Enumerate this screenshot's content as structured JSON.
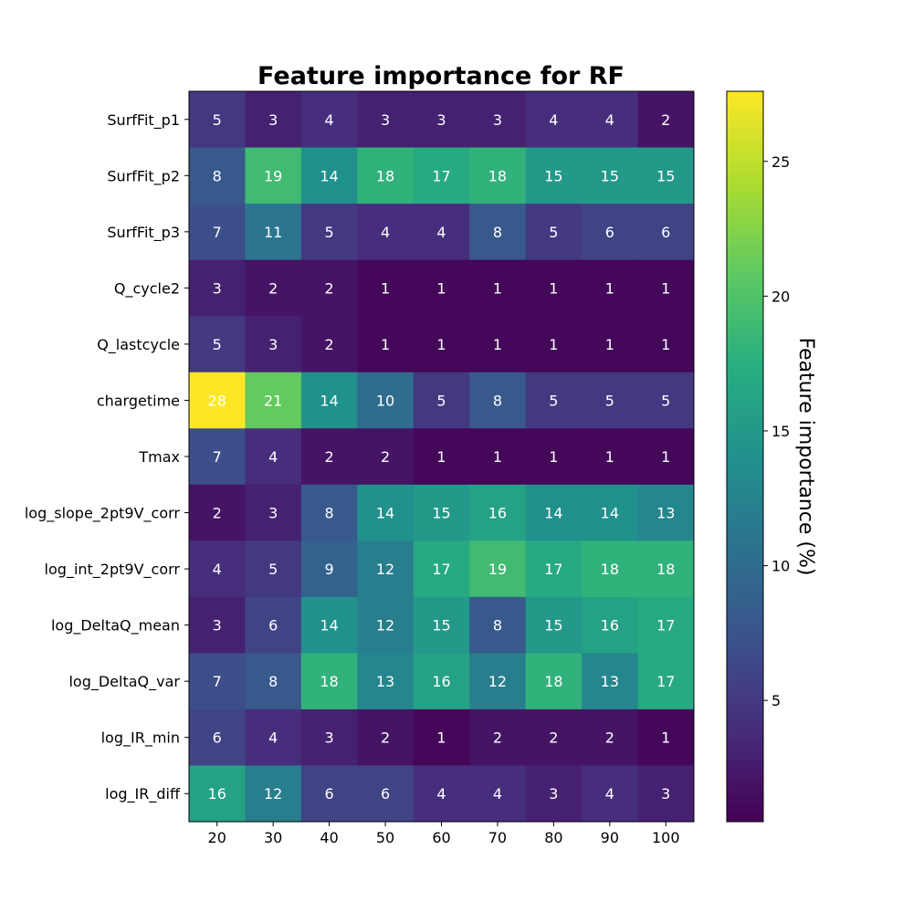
{
  "chart_data": {
    "type": "heatmap",
    "title": "Feature importance for RF",
    "x": [
      "20",
      "30",
      "40",
      "50",
      "60",
      "70",
      "80",
      "90",
      "100"
    ],
    "y": [
      "SurfFit_p1",
      "SurfFit_p2",
      "SurfFit_p3",
      "Q_cycle2",
      "Q_lastcycle",
      "chargetime",
      "Tmax",
      "log_slope_2pt9V_corr",
      "log_int_2pt9V_corr",
      "log_DeltaQ_mean",
      "log_DeltaQ_var",
      "log_IR_min",
      "log_IR_diff"
    ],
    "values": [
      [
        5,
        3,
        4,
        3,
        3,
        3,
        4,
        4,
        2
      ],
      [
        8,
        19,
        14,
        18,
        17,
        18,
        15,
        15,
        15
      ],
      [
        7,
        11,
        5,
        4,
        4,
        8,
        5,
        6,
        6
      ],
      [
        3,
        2,
        2,
        1,
        1,
        1,
        1,
        1,
        1
      ],
      [
        5,
        3,
        2,
        1,
        1,
        1,
        1,
        1,
        1
      ],
      [
        28,
        21,
        14,
        10,
        5,
        8,
        5,
        5,
        5
      ],
      [
        7,
        4,
        2,
        2,
        1,
        1,
        1,
        1,
        1
      ],
      [
        2,
        3,
        8,
        14,
        15,
        16,
        14,
        14,
        13
      ],
      [
        4,
        5,
        9,
        12,
        17,
        19,
        17,
        18,
        18
      ],
      [
        3,
        6,
        14,
        12,
        15,
        8,
        15,
        16,
        17
      ],
      [
        7,
        8,
        18,
        13,
        16,
        12,
        18,
        13,
        17
      ],
      [
        6,
        4,
        3,
        2,
        1,
        2,
        2,
        2,
        1
      ],
      [
        16,
        12,
        6,
        6,
        4,
        4,
        3,
        4,
        3
      ]
    ],
    "colormap": "viridis",
    "colorbar": {
      "label": "Feature importance (%)",
      "range": [
        0.5,
        27.6
      ],
      "ticks": [
        5,
        10,
        15,
        20,
        25
      ]
    },
    "grid": false
  }
}
